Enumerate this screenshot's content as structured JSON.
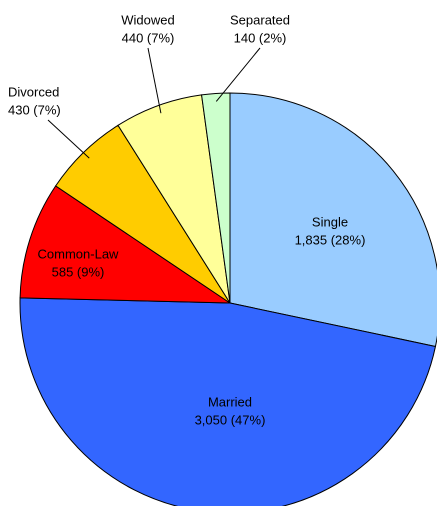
{
  "chart_data": {
    "type": "pie",
    "categories": [
      "Single",
      "Married",
      "Common-Law",
      "Divorced",
      "Widowed",
      "Separated"
    ],
    "values": [
      1835,
      3050,
      585,
      430,
      440,
      140
    ],
    "value_labels": [
      "1,835 (28%)",
      "3,050 (47%)",
      "585 (9%)",
      "430 (7%)",
      "440 (7%)",
      "140 (2%)"
    ],
    "colors": [
      "#99ccff",
      "#3366ff",
      "#ff0000",
      "#ffcc00",
      "#ffff99",
      "#ccffcc"
    ]
  }
}
